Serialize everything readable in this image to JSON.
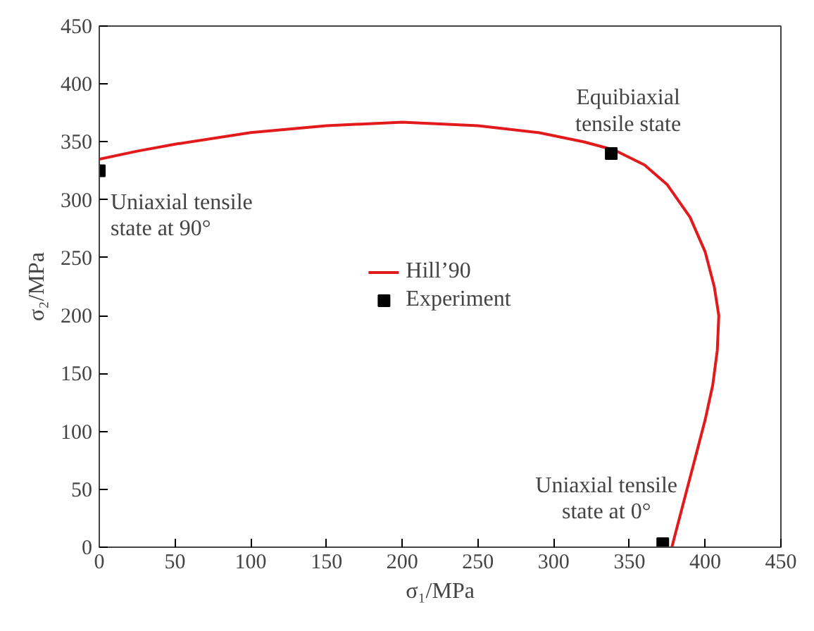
{
  "chart_data": {
    "type": "line",
    "xlabel": "σ₁/MPa",
    "ylabel": "σ₂/MPa",
    "xlim": [
      0,
      450
    ],
    "ylim": [
      0,
      450
    ],
    "xticks": [
      0,
      50,
      100,
      150,
      200,
      250,
      300,
      350,
      400,
      450
    ],
    "yticks": [
      0,
      50,
      100,
      150,
      200,
      250,
      300,
      350,
      400,
      450
    ],
    "grid": false,
    "legend": "center",
    "series": [
      {
        "name": "Hill’90",
        "color": "#e31a1c",
        "x": [
          0,
          25,
          50,
          100,
          150,
          200,
          250,
          290,
          320,
          340,
          360,
          375,
          390,
          400,
          406,
          409,
          408,
          405,
          400,
          394,
          388,
          382,
          378
        ],
        "values": [
          335,
          342,
          348,
          358,
          364,
          367,
          364,
          358,
          350,
          343,
          330,
          313,
          285,
          255,
          225,
          200,
          170,
          140,
          110,
          80,
          50,
          20,
          0
        ]
      },
      {
        "name": "Experiment",
        "type": "scatter",
        "marker": "square",
        "color": "#000000",
        "x": [
          0,
          338,
          372
        ],
        "values": [
          325,
          340,
          3
        ]
      }
    ],
    "annotations": [
      {
        "text": "Uniaxial tensile\nstate at 90°",
        "x": 0,
        "y": 325
      },
      {
        "text": "Equibiaxial\ntensile state",
        "x": 338,
        "y": 340
      },
      {
        "text": "Uniaxial tensile\nstate at 0°",
        "x": 372,
        "y": 3
      }
    ]
  }
}
